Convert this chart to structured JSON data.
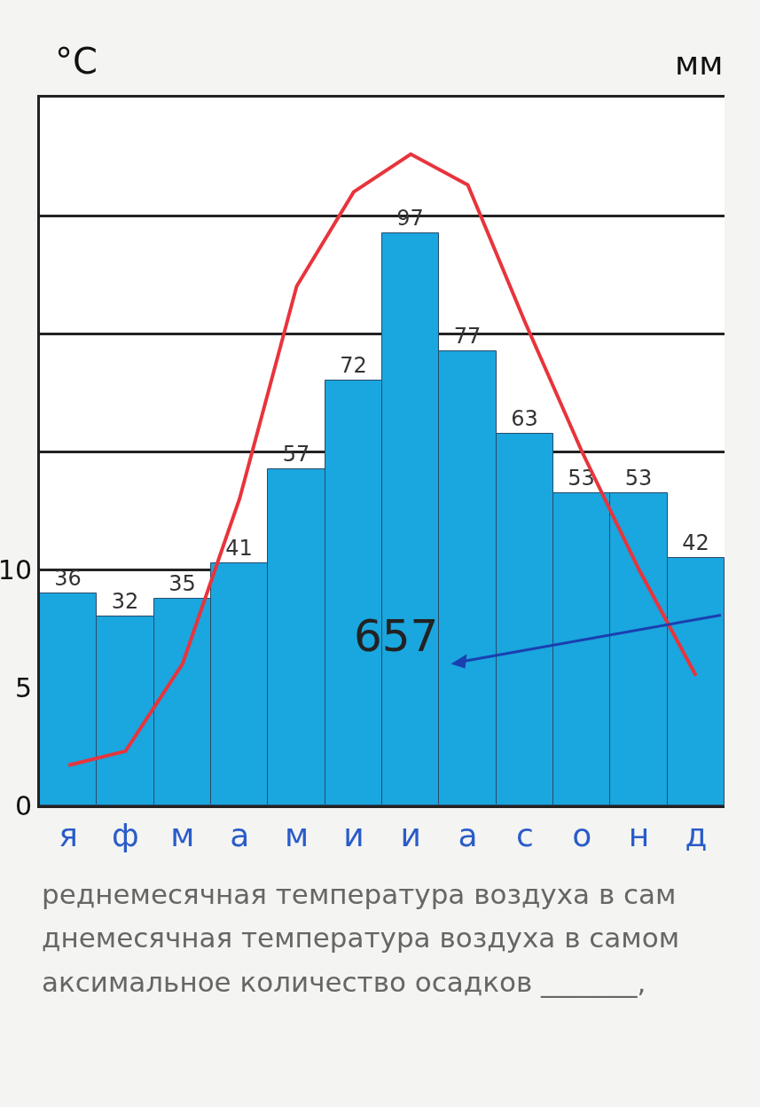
{
  "chart_data": {
    "type": "bar",
    "ylabel": "°C",
    "y2label": "мм",
    "categories": [
      "я",
      "ф",
      "м",
      "а",
      "м",
      "и",
      "и",
      "а",
      "с",
      "о",
      "н",
      "д"
    ],
    "series": [
      {
        "axis": "y2",
        "color": "#1aa6de",
        "values": [
          36,
          32,
          35,
          41,
          57,
          72,
          97,
          77,
          63,
          53,
          53,
          42
        ],
        "value_labels": [
          "36",
          "32",
          "35",
          "41",
          "57",
          "72",
          "97",
          "77",
          "63",
          "53",
          "53",
          "42"
        ]
      },
      {
        "type": "line",
        "axis": "y",
        "color": "#e8343c",
        "values": [
          1.7,
          2.3,
          6,
          13,
          22,
          26,
          27.6,
          26.3,
          20.5,
          15,
          10,
          5.5
        ]
      }
    ],
    "ylim": [
      0,
      30
    ],
    "yticks": [
      0,
      5,
      10,
      {
        "value": 15,
        "label": null
      },
      {
        "value": 20,
        "label": null
      },
      {
        "value": 25,
        "label": null
      },
      {
        "value": 30,
        "label": null
      }
    ],
    "y2lim": [
      0,
      120
    ],
    "tick_labels": "xy",
    "grid": "y",
    "legend": false,
    "marker": "none",
    "line_style": "solid",
    "annotations": [
      "657",
      "реднемесячная температура воздуха в сам",
      "днемесячная температура воздуха в самом",
      "аксимальное количество осадков _______,"
    ]
  }
}
